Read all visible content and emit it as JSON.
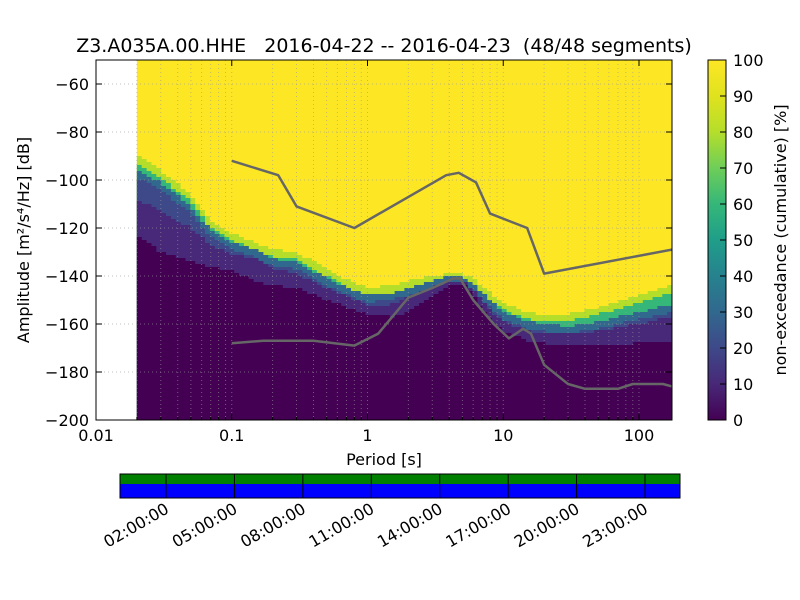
{
  "chart_data": [
    {
      "type": "heatmap",
      "title": "Z3.A035A.00.HHE   2016-04-22 -- 2016-04-23  (48/48 segments)",
      "xlabel": "Period [s]",
      "ylabel": "Amplitude [m²/s⁴/Hz] [dB]",
      "xscale": "log",
      "xlim": [
        0.01,
        175
      ],
      "ylim": [
        -200,
        -50
      ],
      "grid": true,
      "x_tick_labels": [
        "0.01",
        "0.1",
        "1",
        "10",
        "100"
      ],
      "x_ticks": [
        0.01,
        0.1,
        1,
        10,
        100
      ],
      "y_ticks": [
        -60,
        -80,
        -100,
        -120,
        -140,
        -160,
        -180,
        -200
      ],
      "y_tick_labels": [
        "−60",
        "−80",
        "−100",
        "−120",
        "−140",
        "−160",
        "−180",
        "−200"
      ],
      "data_period_min": 0.02,
      "colorbar": {
        "label": "non-exceedance (cumulative) [%]",
        "ticks": [
          0,
          10,
          20,
          30,
          40,
          50,
          60,
          70,
          80,
          90,
          100
        ],
        "colormap": "viridis"
      },
      "coverage_bands": {
        "lower_pct_0": [
          [
            0.02,
            -123
          ],
          [
            0.03,
            -130
          ],
          [
            0.05,
            -134
          ],
          [
            0.07,
            -136
          ],
          [
            0.1,
            -138
          ],
          [
            0.15,
            -142
          ],
          [
            0.2,
            -144
          ],
          [
            0.3,
            -145
          ],
          [
            0.5,
            -150
          ],
          [
            0.8,
            -154
          ],
          [
            1,
            -156
          ],
          [
            1.5,
            -157
          ],
          [
            2,
            -155
          ],
          [
            3,
            -149
          ],
          [
            4,
            -144
          ],
          [
            5,
            -143
          ],
          [
            6,
            -148
          ],
          [
            8,
            -158
          ],
          [
            10,
            -163
          ],
          [
            15,
            -167
          ],
          [
            20,
            -168
          ],
          [
            30,
            -169
          ],
          [
            50,
            -169
          ],
          [
            100,
            -168
          ],
          [
            175,
            -167
          ]
        ],
        "band_10_15": [
          [
            0.02,
            -108
          ],
          [
            0.03,
            -113
          ],
          [
            0.05,
            -120
          ],
          [
            0.07,
            -127
          ],
          [
            0.1,
            -131
          ],
          [
            0.15,
            -133
          ],
          [
            0.2,
            -137
          ],
          [
            0.3,
            -139
          ],
          [
            0.5,
            -145
          ],
          [
            0.8,
            -150
          ],
          [
            1,
            -152
          ],
          [
            1.5,
            -152
          ],
          [
            2,
            -149
          ],
          [
            3,
            -145
          ],
          [
            4,
            -142
          ],
          [
            5,
            -142
          ],
          [
            6,
            -146
          ],
          [
            8,
            -154
          ],
          [
            10,
            -159
          ],
          [
            15,
            -163
          ],
          [
            20,
            -164
          ],
          [
            30,
            -164
          ],
          [
            50,
            -163
          ],
          [
            100,
            -160
          ],
          [
            175,
            -157
          ]
        ],
        "band_30": [
          [
            0.02,
            -96
          ],
          [
            0.03,
            -101
          ],
          [
            0.05,
            -111
          ],
          [
            0.07,
            -121
          ],
          [
            0.1,
            -126
          ],
          [
            0.15,
            -129
          ],
          [
            0.2,
            -133
          ],
          [
            0.3,
            -134
          ],
          [
            0.5,
            -141
          ],
          [
            0.8,
            -146
          ],
          [
            1,
            -148
          ],
          [
            1.5,
            -147
          ],
          [
            2,
            -145
          ],
          [
            3,
            -142
          ],
          [
            4,
            -140
          ],
          [
            5,
            -140
          ],
          [
            6,
            -143
          ],
          [
            8,
            -150
          ],
          [
            10,
            -155
          ],
          [
            15,
            -159
          ],
          [
            20,
            -160
          ],
          [
            30,
            -161
          ],
          [
            50,
            -159
          ],
          [
            100,
            -155
          ],
          [
            175,
            -152
          ]
        ],
        "band_60_80": [
          [
            0.02,
            -90
          ],
          [
            0.03,
            -96
          ],
          [
            0.05,
            -106
          ],
          [
            0.07,
            -117
          ],
          [
            0.1,
            -122
          ],
          [
            0.15,
            -126
          ],
          [
            0.2,
            -129
          ],
          [
            0.3,
            -130
          ],
          [
            0.5,
            -137
          ],
          [
            0.8,
            -143
          ],
          [
            1,
            -145
          ],
          [
            1.5,
            -144
          ],
          [
            2,
            -142
          ],
          [
            3,
            -140
          ],
          [
            4,
            -139
          ],
          [
            5,
            -139
          ],
          [
            6,
            -141
          ],
          [
            8,
            -147
          ],
          [
            10,
            -151
          ],
          [
            15,
            -155
          ],
          [
            20,
            -156
          ],
          [
            30,
            -156
          ],
          [
            50,
            -153
          ],
          [
            100,
            -148
          ],
          [
            175,
            -144
          ]
        ]
      },
      "series": [
        {
          "name": "",
          "x": [
            0.1,
            0.22,
            0.3,
            0.8,
            3.8,
            4.7,
            6.3,
            8.0,
            15.0,
            20.0,
            175.0
          ],
          "y": [
            -92,
            -98,
            -111,
            -120,
            -98,
            -97,
            -101,
            -114,
            -120,
            -139,
            -129
          ]
        },
        {
          "name": "",
          "x": [
            0.1,
            0.17,
            0.4,
            0.8,
            1.2,
            2.0,
            3.0,
            4.3,
            4.8,
            6.0,
            8.5,
            11.0,
            14.0,
            16.0,
            20.0,
            30.0,
            40.0,
            70.0,
            90.0,
            150.0,
            175.0
          ],
          "y": [
            -168,
            -167,
            -167,
            -169,
            -164,
            -149,
            -145,
            -141,
            -141,
            -150,
            -160,
            -166,
            -162,
            -164,
            -177,
            -185,
            -187,
            -187,
            -185,
            -185,
            -186
          ]
        }
      ]
    },
    {
      "type": "timeline",
      "time_labels": [
        "02:00:00",
        "05:00:00",
        "08:00:00",
        "11:00:00",
        "14:00:00",
        "17:00:00",
        "20:00:00",
        "23:00:00"
      ],
      "tracks": [
        {
          "color": "#008000",
          "coverage": 1.0
        },
        {
          "color": "#0000ff",
          "coverage": 1.0
        }
      ]
    }
  ]
}
